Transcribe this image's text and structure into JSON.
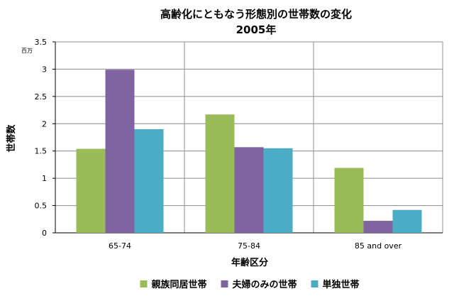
{
  "chart_data": {
    "type": "bar",
    "title": "高齢化にともなう形態別の世帯数の変化",
    "subtitle": "2005年",
    "xlabel": "年齢区分",
    "ylabel": "世帯数",
    "yunit": "百万",
    "categories": [
      "65-74",
      "75-84",
      "85 and over"
    ],
    "ylim": [
      0,
      3.5
    ],
    "yticks": [
      "0",
      "0.5",
      "1",
      "1.5",
      "2",
      "2.5",
      "3",
      "3.5"
    ],
    "grid": true,
    "legend_position": "bottom",
    "series": [
      {
        "name": "親族同居世帯",
        "color": "#9BBB59",
        "values": [
          1.54,
          2.17,
          1.19
        ]
      },
      {
        "name": "夫婦のみの世帯",
        "color": "#8064A2",
        "values": [
          2.99,
          1.57,
          0.22
        ]
      },
      {
        "name": "単独世帯",
        "color": "#4BACC6",
        "values": [
          1.9,
          1.55,
          0.42
        ]
      }
    ]
  }
}
